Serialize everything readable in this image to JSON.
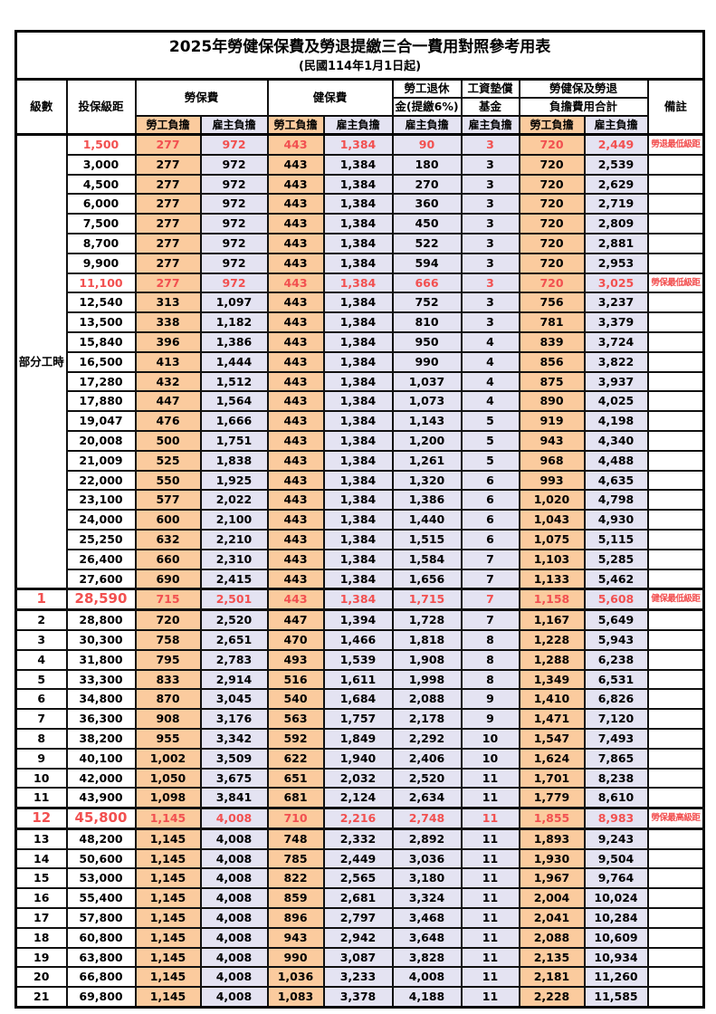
{
  "title": "2025年勞健保保費及勞退提繳三合一費用對照參考用表",
  "subtitle": "(民國114年1月1日起)",
  "colors": {
    "employee_fill": "#fbcb9e",
    "employer_fill": "#e4e3f2",
    "highlight_text": "#f25050",
    "grid": "#000000"
  },
  "header": {
    "level": "級數",
    "bracket": "投保級距",
    "labor_ins": "勞保費",
    "health_ins": "健保費",
    "pension_line1": "勞工退休",
    "pension_line2": "金(提繳6%)",
    "arrears_line1": "工資墊償",
    "arrears_line2": "基金",
    "total_line1": "勞健保及勞退",
    "total_line2": "負擔費用合計",
    "note": "備註",
    "employee": "勞工負擔",
    "employer": "雇主負擔"
  },
  "part_time_label": "部分工時",
  "row_fields": [
    "level",
    "bracket",
    "labor_emp",
    "labor_er",
    "health_emp",
    "health_er",
    "pension_er",
    "arrears_er",
    "total_emp",
    "total_er",
    "note",
    "flag"
  ],
  "rows": [
    [
      "",
      "1,500",
      "277",
      "972",
      "443",
      "1,384",
      "90",
      "3",
      "720",
      "2,449",
      "勞退最低級距",
      "red"
    ],
    [
      "",
      "3,000",
      "277",
      "972",
      "443",
      "1,384",
      "180",
      "3",
      "720",
      "2,539",
      "",
      ""
    ],
    [
      "",
      "4,500",
      "277",
      "972",
      "443",
      "1,384",
      "270",
      "3",
      "720",
      "2,629",
      "",
      ""
    ],
    [
      "",
      "6,000",
      "277",
      "972",
      "443",
      "1,384",
      "360",
      "3",
      "720",
      "2,719",
      "",
      ""
    ],
    [
      "",
      "7,500",
      "277",
      "972",
      "443",
      "1,384",
      "450",
      "3",
      "720",
      "2,809",
      "",
      ""
    ],
    [
      "",
      "8,700",
      "277",
      "972",
      "443",
      "1,384",
      "522",
      "3",
      "720",
      "2,881",
      "",
      ""
    ],
    [
      "",
      "9,900",
      "277",
      "972",
      "443",
      "1,384",
      "594",
      "3",
      "720",
      "2,953",
      "",
      ""
    ],
    [
      "",
      "11,100",
      "277",
      "972",
      "443",
      "1,384",
      "666",
      "3",
      "720",
      "3,025",
      "勞保最低級距",
      "red"
    ],
    [
      "",
      "12,540",
      "313",
      "1,097",
      "443",
      "1,384",
      "752",
      "3",
      "756",
      "3,237",
      "",
      ""
    ],
    [
      "",
      "13,500",
      "338",
      "1,182",
      "443",
      "1,384",
      "810",
      "3",
      "781",
      "3,379",
      "",
      ""
    ],
    [
      "",
      "15,840",
      "396",
      "1,386",
      "443",
      "1,384",
      "950",
      "4",
      "839",
      "3,724",
      "",
      ""
    ],
    [
      "",
      "16,500",
      "413",
      "1,444",
      "443",
      "1,384",
      "990",
      "4",
      "856",
      "3,822",
      "",
      ""
    ],
    [
      "",
      "17,280",
      "432",
      "1,512",
      "443",
      "1,384",
      "1,037",
      "4",
      "875",
      "3,937",
      "",
      ""
    ],
    [
      "",
      "17,880",
      "447",
      "1,564",
      "443",
      "1,384",
      "1,073",
      "4",
      "890",
      "4,025",
      "",
      ""
    ],
    [
      "",
      "19,047",
      "476",
      "1,666",
      "443",
      "1,384",
      "1,143",
      "5",
      "919",
      "4,198",
      "",
      ""
    ],
    [
      "",
      "20,008",
      "500",
      "1,751",
      "443",
      "1,384",
      "1,200",
      "5",
      "943",
      "4,340",
      "",
      ""
    ],
    [
      "",
      "21,009",
      "525",
      "1,838",
      "443",
      "1,384",
      "1,261",
      "5",
      "968",
      "4,488",
      "",
      ""
    ],
    [
      "",
      "22,000",
      "550",
      "1,925",
      "443",
      "1,384",
      "1,320",
      "6",
      "993",
      "4,635",
      "",
      ""
    ],
    [
      "",
      "23,100",
      "577",
      "2,022",
      "443",
      "1,384",
      "1,386",
      "6",
      "1,020",
      "4,798",
      "",
      ""
    ],
    [
      "",
      "24,000",
      "600",
      "2,100",
      "443",
      "1,384",
      "1,440",
      "6",
      "1,043",
      "4,930",
      "",
      ""
    ],
    [
      "",
      "25,250",
      "632",
      "2,210",
      "443",
      "1,384",
      "1,515",
      "6",
      "1,075",
      "5,115",
      "",
      ""
    ],
    [
      "",
      "26,400",
      "660",
      "2,310",
      "443",
      "1,384",
      "1,584",
      "7",
      "1,103",
      "5,285",
      "",
      ""
    ],
    [
      "",
      "27,600",
      "690",
      "2,415",
      "443",
      "1,384",
      "1,656",
      "7",
      "1,133",
      "5,462",
      "",
      ""
    ],
    [
      "1",
      "28,590",
      "715",
      "2,501",
      "443",
      "1,384",
      "1,715",
      "7",
      "1,158",
      "5,608",
      "健保最低級距",
      "redbig"
    ],
    [
      "2",
      "28,800",
      "720",
      "2,520",
      "447",
      "1,394",
      "1,728",
      "7",
      "1,167",
      "5,649",
      "",
      ""
    ],
    [
      "3",
      "30,300",
      "758",
      "2,651",
      "470",
      "1,466",
      "1,818",
      "8",
      "1,228",
      "5,943",
      "",
      ""
    ],
    [
      "4",
      "31,800",
      "795",
      "2,783",
      "493",
      "1,539",
      "1,908",
      "8",
      "1,288",
      "6,238",
      "",
      ""
    ],
    [
      "5",
      "33,300",
      "833",
      "2,914",
      "516",
      "1,611",
      "1,998",
      "8",
      "1,349",
      "6,531",
      "",
      ""
    ],
    [
      "6",
      "34,800",
      "870",
      "3,045",
      "540",
      "1,684",
      "2,088",
      "9",
      "1,410",
      "6,826",
      "",
      ""
    ],
    [
      "7",
      "36,300",
      "908",
      "3,176",
      "563",
      "1,757",
      "2,178",
      "9",
      "1,471",
      "7,120",
      "",
      ""
    ],
    [
      "8",
      "38,200",
      "955",
      "3,342",
      "592",
      "1,849",
      "2,292",
      "10",
      "1,547",
      "7,493",
      "",
      ""
    ],
    [
      "9",
      "40,100",
      "1,002",
      "3,509",
      "622",
      "1,940",
      "2,406",
      "10",
      "1,624",
      "7,865",
      "",
      ""
    ],
    [
      "10",
      "42,000",
      "1,050",
      "3,675",
      "651",
      "2,032",
      "2,520",
      "11",
      "1,701",
      "8,238",
      "",
      ""
    ],
    [
      "11",
      "43,900",
      "1,098",
      "3,841",
      "681",
      "2,124",
      "2,634",
      "11",
      "1,779",
      "8,610",
      "",
      ""
    ],
    [
      "12",
      "45,800",
      "1,145",
      "4,008",
      "710",
      "2,216",
      "2,748",
      "11",
      "1,855",
      "8,983",
      "勞保最高級距",
      "redbig"
    ],
    [
      "13",
      "48,200",
      "1,145",
      "4,008",
      "748",
      "2,332",
      "2,892",
      "11",
      "1,893",
      "9,243",
      "",
      ""
    ],
    [
      "14",
      "50,600",
      "1,145",
      "4,008",
      "785",
      "2,449",
      "3,036",
      "11",
      "1,930",
      "9,504",
      "",
      ""
    ],
    [
      "15",
      "53,000",
      "1,145",
      "4,008",
      "822",
      "2,565",
      "3,180",
      "11",
      "1,967",
      "9,764",
      "",
      ""
    ],
    [
      "16",
      "55,400",
      "1,145",
      "4,008",
      "859",
      "2,681",
      "3,324",
      "11",
      "2,004",
      "10,024",
      "",
      ""
    ],
    [
      "17",
      "57,800",
      "1,145",
      "4,008",
      "896",
      "2,797",
      "3,468",
      "11",
      "2,041",
      "10,284",
      "",
      ""
    ],
    [
      "18",
      "60,800",
      "1,145",
      "4,008",
      "943",
      "2,942",
      "3,648",
      "11",
      "2,088",
      "10,609",
      "",
      ""
    ],
    [
      "19",
      "63,800",
      "1,145",
      "4,008",
      "990",
      "3,087",
      "3,828",
      "11",
      "2,135",
      "10,934",
      "",
      ""
    ],
    [
      "20",
      "66,800",
      "1,145",
      "4,008",
      "1,036",
      "3,233",
      "4,008",
      "11",
      "2,181",
      "11,260",
      "",
      ""
    ],
    [
      "21",
      "69,800",
      "1,145",
      "4,008",
      "1,083",
      "3,378",
      "4,188",
      "11",
      "2,228",
      "11,585",
      "",
      ""
    ]
  ]
}
